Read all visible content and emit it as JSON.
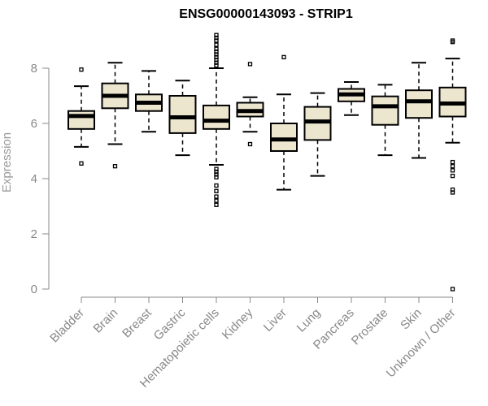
{
  "chart_data": {
    "type": "boxplot",
    "title": "ENSG00000143093 - STRIP1",
    "xlabel": "",
    "ylabel": "Expression",
    "ylim": [
      0,
      9.4
    ],
    "yticks": [
      0,
      2,
      4,
      6,
      8
    ],
    "colors": {
      "box_fill": "#ede6cf",
      "box_stroke": "#000000",
      "axis": "#888888",
      "title": "#000000"
    },
    "categories": [
      "Bladder",
      "Brain",
      "Breast",
      "Gastric",
      "Hematopoietic cells",
      "Kidney",
      "Liver",
      "Lung",
      "Pancreas",
      "Prostate",
      "Skin",
      "Unknown / Other"
    ],
    "boxes": [
      {
        "q1": 5.8,
        "median": 6.27,
        "q3": 6.45,
        "whisker_low": 5.15,
        "whisker_high": 7.35,
        "outliers": [
          7.95,
          4.55
        ]
      },
      {
        "q1": 6.55,
        "median": 7.0,
        "q3": 7.45,
        "whisker_low": 5.25,
        "whisker_high": 8.2,
        "outliers": [
          4.45
        ]
      },
      {
        "q1": 6.45,
        "median": 6.75,
        "q3": 7.05,
        "whisker_low": 5.7,
        "whisker_high": 7.9,
        "outliers": []
      },
      {
        "q1": 5.65,
        "median": 6.22,
        "q3": 7.0,
        "whisker_low": 4.85,
        "whisker_high": 7.55,
        "outliers": []
      },
      {
        "q1": 5.8,
        "median": 6.1,
        "q3": 6.65,
        "whisker_low": 4.5,
        "whisker_high": 8.0,
        "outliers": [
          9.2,
          9.1,
          9.0,
          8.85,
          8.7,
          8.6,
          8.5,
          8.4,
          8.3,
          8.2,
          8.1,
          4.35,
          4.25,
          4.15,
          4.05,
          3.75,
          3.55,
          3.35,
          3.2,
          3.05
        ]
      },
      {
        "q1": 6.25,
        "median": 6.45,
        "q3": 6.75,
        "whisker_low": 5.7,
        "whisker_high": 6.95,
        "outliers": [
          8.15,
          5.25
        ]
      },
      {
        "q1": 5.0,
        "median": 5.42,
        "q3": 6.0,
        "whisker_low": 3.6,
        "whisker_high": 7.05,
        "outliers": [
          8.4
        ]
      },
      {
        "q1": 5.4,
        "median": 6.07,
        "q3": 6.6,
        "whisker_low": 4.1,
        "whisker_high": 7.1,
        "outliers": []
      },
      {
        "q1": 6.8,
        "median": 7.05,
        "q3": 7.25,
        "whisker_low": 6.3,
        "whisker_high": 7.5,
        "outliers": []
      },
      {
        "q1": 5.95,
        "median": 6.62,
        "q3": 6.98,
        "whisker_low": 4.85,
        "whisker_high": 7.4,
        "outliers": []
      },
      {
        "q1": 6.2,
        "median": 6.8,
        "q3": 7.2,
        "whisker_low": 4.75,
        "whisker_high": 8.2,
        "outliers": []
      },
      {
        "q1": 6.25,
        "median": 6.72,
        "q3": 7.3,
        "whisker_low": 5.3,
        "whisker_high": 8.35,
        "outliers": [
          9.0,
          8.95,
          4.6,
          4.45,
          4.3,
          4.1,
          3.6,
          3.5,
          0.0
        ]
      }
    ]
  }
}
